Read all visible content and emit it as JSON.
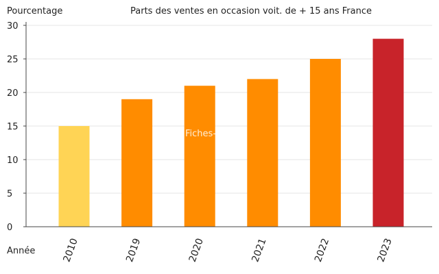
{
  "chart_data": {
    "type": "bar",
    "title": "Parts des ventes en occasion voit. de + 15 ans France",
    "ylabel": "Pourcentage",
    "xlabel": "Année",
    "categories": [
      "2010",
      "2019",
      "2020",
      "2021",
      "2022",
      "2023"
    ],
    "values": [
      15,
      19,
      21,
      22,
      25,
      28
    ],
    "colors": [
      "#FFD455",
      "#FF8C00",
      "#FF8C00",
      "#FF8C00",
      "#FF8C00",
      "#C8232A"
    ],
    "ylim": [
      0,
      30
    ],
    "yticks": [
      0,
      5,
      10,
      15,
      20,
      25,
      30
    ],
    "grid": true,
    "watermark": "Fiches-auto.fr"
  }
}
